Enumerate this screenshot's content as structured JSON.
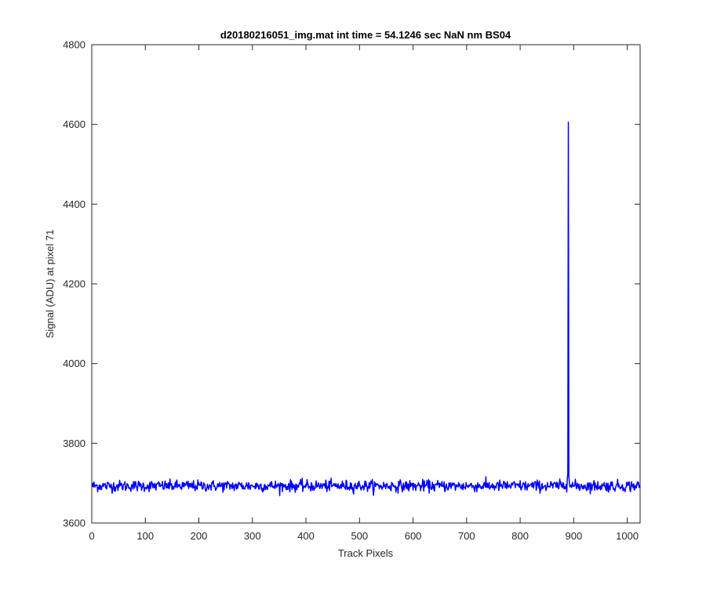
{
  "chart_data": {
    "type": "line",
    "title": "d20180216051_img.mat int time = 54.1246 sec  NaN nm BS04",
    "xlabel": "Track Pixels",
    "ylabel": "Signal (ADU) at pixel 71",
    "xlim": [
      0,
      1024
    ],
    "ylim": [
      3600,
      4800
    ],
    "xticks": [
      "0",
      "100",
      "200",
      "300",
      "400",
      "500",
      "600",
      "700",
      "800",
      "900",
      "1000"
    ],
    "yticks": [
      "3600",
      "3800",
      "4000",
      "4200",
      "4400",
      "4600",
      "4800"
    ],
    "grid": false,
    "series": [
      {
        "color": "#0000ff",
        "baseline": 3693,
        "noise_amplitude": 14,
        "num_points": 1024,
        "x_start": 1,
        "spike": {
          "x": [
            888,
            889,
            890,
            891,
            892
          ],
          "y": [
            3710,
            3725,
            4606,
            3715,
            3700
          ]
        }
      }
    ]
  }
}
